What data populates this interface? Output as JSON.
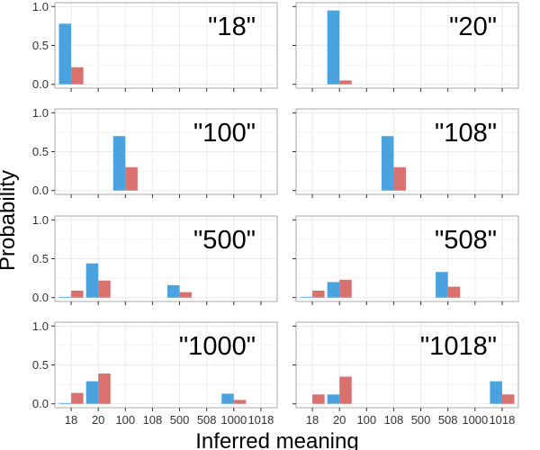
{
  "chart_data": {
    "type": "bar",
    "xlabel": "Inferred meaning",
    "ylabel": "Probability",
    "categories": [
      "18",
      "20",
      "100",
      "108",
      "500",
      "508",
      "1000",
      "1018"
    ],
    "ylim": [
      0,
      1
    ],
    "yticks": [
      "0.0",
      "0.5",
      "1.0"
    ],
    "grid": true,
    "layout": {
      "rows": 4,
      "cols": 2
    },
    "colors": {
      "series1": "#4aa3df",
      "series2": "#d9716e",
      "panel_border": "#aaaaaa",
      "grid": "#ececec"
    },
    "panels": [
      {
        "title": "\"18\"",
        "series": [
          {
            "values": [
              0.78,
              0.0,
              0.0,
              0.0,
              0.0,
              0.0,
              0.0,
              0.0
            ]
          },
          {
            "values": [
              0.22,
              0.0,
              0.0,
              0.0,
              0.0,
              0.0,
              0.0,
              0.0
            ]
          }
        ]
      },
      {
        "title": "\"20\"",
        "series": [
          {
            "values": [
              0.0,
              0.95,
              0.0,
              0.0,
              0.0,
              0.0,
              0.0,
              0.0
            ]
          },
          {
            "values": [
              0.0,
              0.05,
              0.0,
              0.0,
              0.0,
              0.0,
              0.0,
              0.0
            ]
          }
        ]
      },
      {
        "title": "\"100\"",
        "series": [
          {
            "values": [
              0.0,
              0.0,
              0.7,
              0.0,
              0.0,
              0.0,
              0.0,
              0.0
            ]
          },
          {
            "values": [
              0.0,
              0.0,
              0.3,
              0.0,
              0.0,
              0.0,
              0.0,
              0.0
            ]
          }
        ]
      },
      {
        "title": "\"108\"",
        "series": [
          {
            "values": [
              0.0,
              0.0,
              0.0,
              0.7,
              0.0,
              0.0,
              0.0,
              0.0
            ]
          },
          {
            "values": [
              0.0,
              0.0,
              0.0,
              0.3,
              0.0,
              0.0,
              0.0,
              0.0
            ]
          }
        ]
      },
      {
        "title": "\"500\"",
        "series": [
          {
            "values": [
              0.01,
              0.44,
              0.0,
              0.0,
              0.16,
              0.0,
              0.0,
              0.0
            ]
          },
          {
            "values": [
              0.09,
              0.22,
              0.0,
              0.0,
              0.07,
              0.0,
              0.0,
              0.0
            ]
          }
        ]
      },
      {
        "title": "\"508\"",
        "series": [
          {
            "values": [
              0.01,
              0.2,
              0.0,
              0.0,
              0.0,
              0.33,
              0.0,
              0.0
            ]
          },
          {
            "values": [
              0.09,
              0.23,
              0.0,
              0.0,
              0.0,
              0.14,
              0.0,
              0.0
            ]
          }
        ]
      },
      {
        "title": "\"1000\"",
        "series": [
          {
            "values": [
              0.01,
              0.29,
              0.0,
              0.0,
              0.0,
              0.0,
              0.13,
              0.0
            ]
          },
          {
            "values": [
              0.14,
              0.39,
              0.0,
              0.0,
              0.0,
              0.0,
              0.05,
              0.0
            ]
          }
        ]
      },
      {
        "title": "\"1018\"",
        "series": [
          {
            "values": [
              0.0,
              0.12,
              0.0,
              0.0,
              0.0,
              0.0,
              0.0,
              0.29
            ]
          },
          {
            "values": [
              0.12,
              0.35,
              0.0,
              0.0,
              0.0,
              0.0,
              0.0,
              0.12
            ]
          }
        ]
      }
    ]
  }
}
